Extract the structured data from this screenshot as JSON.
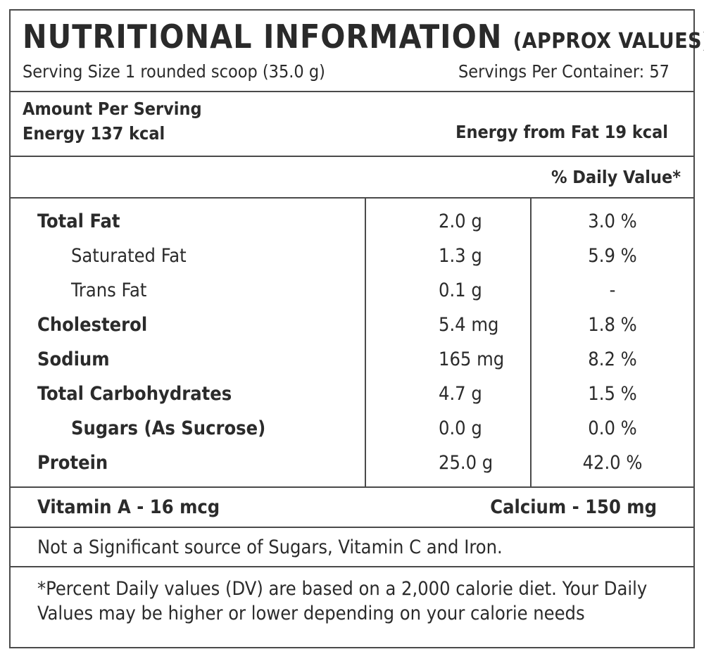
{
  "header": {
    "title": "NUTRITIONAL INFORMATION",
    "title_sub": "(APPROX VALUES)",
    "serving_size": "Serving Size 1 rounded scoop (35.0 g)",
    "servings_per_container": "Servings Per Container: 57"
  },
  "energy": {
    "amount_per_serving": "Amount Per Serving",
    "energy": "Energy 137 kcal",
    "energy_from_fat": "Energy from Fat 19 kcal"
  },
  "dv_header": "% Daily Value*",
  "nutrients": [
    {
      "name": "Total Fat",
      "amount": "2.0 g",
      "dv": "3.0 %"
    },
    {
      "name": "Saturated Fat",
      "amount": "1.3 g",
      "dv": "5.9 %"
    },
    {
      "name": "Trans Fat",
      "amount": "0.1 g",
      "dv": "-"
    },
    {
      "name": "Cholesterol",
      "amount": "5.4 mg",
      "dv": "1.8 %"
    },
    {
      "name": "Sodium",
      "amount": "165 mg",
      "dv": "8.2 %"
    },
    {
      "name": "Total Carbohydrates",
      "amount": "4.7 g",
      "dv": "1.5 %"
    },
    {
      "name": "Sugars (As Sucrose)",
      "amount": "0.0 g",
      "dv": "0.0 %"
    },
    {
      "name": "Protein",
      "amount": "25.0 g",
      "dv": "42.0 %"
    }
  ],
  "minerals": {
    "vitamin_a": "Vitamin A - 16 mcg",
    "calcium": "Calcium - 150 mg"
  },
  "note": "Not a Significant source of Sugars, Vitamin C and Iron.",
  "footnote": "*Percent Daily values (DV) are based on a 2,000 calorie diet. Your Daily Values may be higher or lower depending on your calorie needs"
}
